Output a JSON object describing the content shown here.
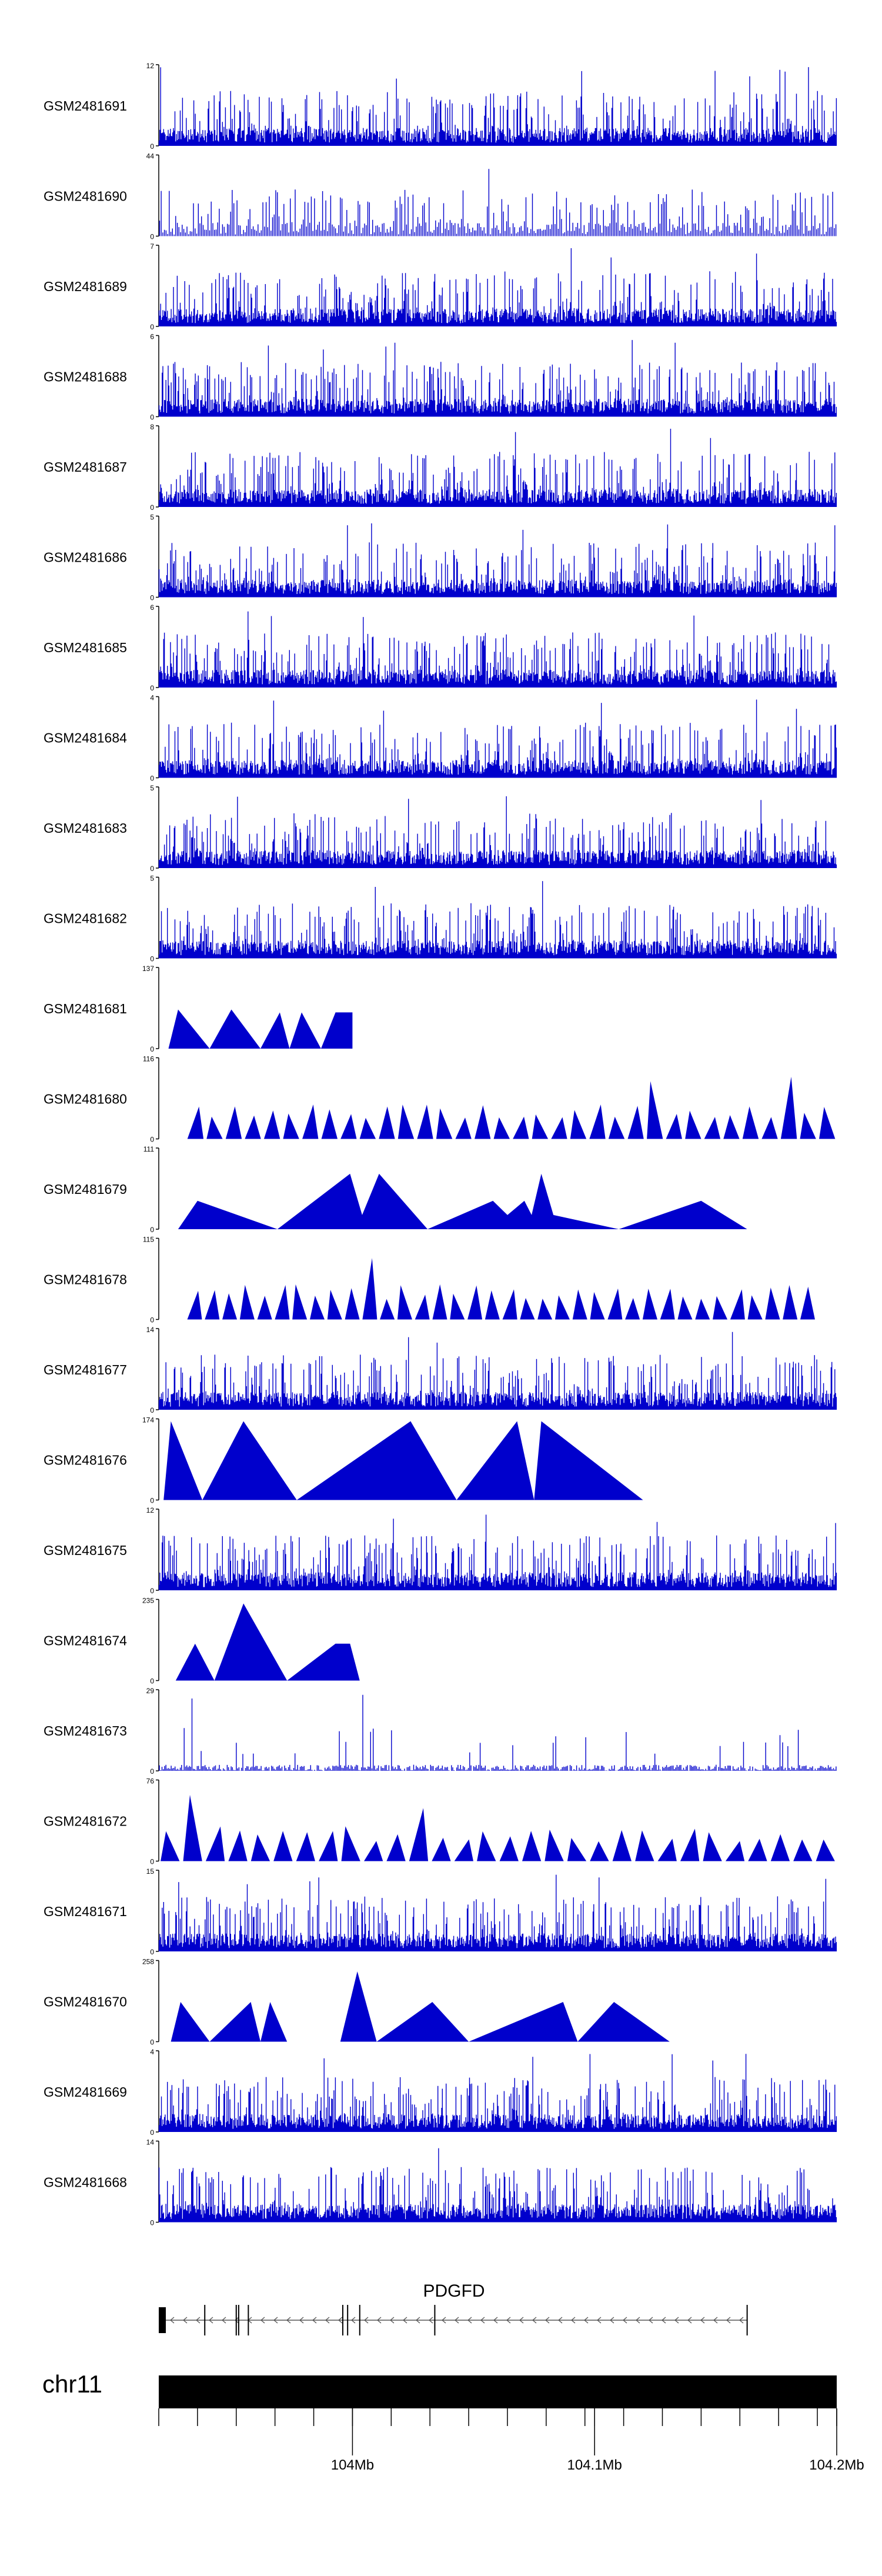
{
  "chart_data": {
    "type": "area",
    "title": "",
    "xlabel": "",
    "ylabel": "",
    "xlim": [
      103.92,
      104.2
    ],
    "series_color": "#0000cc",
    "tracks": [
      {
        "name": "GSM2481691",
        "ymax": 12,
        "ylim": [
          0,
          12
        ],
        "style": "dense",
        "seed": 11
      },
      {
        "name": "GSM2481690",
        "ymax": 44,
        "ylim": [
          0,
          44
        ],
        "style": "semi",
        "seed": 12
      },
      {
        "name": "GSM2481689",
        "ymax": 7,
        "ylim": [
          0,
          7
        ],
        "style": "dense",
        "seed": 13
      },
      {
        "name": "GSM2481688",
        "ymax": 6,
        "ylim": [
          0,
          6
        ],
        "style": "dense",
        "seed": 14
      },
      {
        "name": "GSM2481687",
        "ymax": 8,
        "ylim": [
          0,
          8
        ],
        "style": "dense",
        "seed": 15
      },
      {
        "name": "GSM2481686",
        "ymax": 5,
        "ylim": [
          0,
          5
        ],
        "style": "dense",
        "seed": 16
      },
      {
        "name": "GSM2481685",
        "ymax": 6,
        "ylim": [
          0,
          6
        ],
        "style": "dense",
        "seed": 17
      },
      {
        "name": "GSM2481684",
        "ymax": 4,
        "ylim": [
          0,
          4
        ],
        "style": "dense",
        "seed": 18
      },
      {
        "name": "GSM2481683",
        "ymax": 5,
        "ylim": [
          0,
          5
        ],
        "style": "dense",
        "seed": 19
      },
      {
        "name": "GSM2481682",
        "ymax": 5,
        "ylim": [
          0,
          5
        ],
        "style": "dense",
        "seed": 20
      },
      {
        "name": "GSM2481681",
        "ymax": 137,
        "ylim": [
          0,
          137
        ],
        "points": [
          [
            103.924,
            0
          ],
          [
            103.928,
            68
          ],
          [
            103.941,
            0
          ],
          [
            103.95,
            68
          ],
          [
            103.962,
            0
          ],
          [
            103.97,
            63
          ],
          [
            103.974,
            0
          ],
          [
            103.979,
            63
          ],
          [
            103.987,
            0
          ],
          [
            103.993,
            63
          ],
          [
            104.0,
            63
          ],
          [
            104.0,
            0
          ],
          [
            103.992,
            0
          ]
        ]
      },
      {
        "name": "GSM2481680",
        "ymax": 116,
        "ylim": [
          0,
          116
        ],
        "style": "triangles",
        "seed": 21,
        "tri_count": 34,
        "tri_start": 0.04,
        "tri_end": 1.0
      },
      {
        "name": "GSM2481679",
        "ymax": 111,
        "ylim": [
          0,
          111
        ],
        "points": [
          [
            103.928,
            0
          ],
          [
            103.936,
            40
          ],
          [
            103.969,
            0
          ],
          [
            103.999,
            78
          ],
          [
            104.004,
            20
          ],
          [
            104.011,
            78
          ],
          [
            104.031,
            0
          ],
          [
            104.058,
            40
          ],
          [
            104.064,
            20
          ],
          [
            104.071,
            40
          ],
          [
            104.074,
            20
          ],
          [
            104.078,
            78
          ],
          [
            104.083,
            20
          ],
          [
            104.11,
            0
          ],
          [
            104.144,
            40
          ],
          [
            104.163,
            0
          ]
        ]
      },
      {
        "name": "GSM2481678",
        "ymax": 115,
        "ylim": [
          0,
          115
        ],
        "style": "triangles",
        "seed": 22,
        "tri_count": 36,
        "tri_start": 0.04,
        "tri_end": 0.97
      },
      {
        "name": "GSM2481677",
        "ymax": 14,
        "ylim": [
          0,
          14
        ],
        "style": "dense",
        "seed": 23
      },
      {
        "name": "GSM2481676",
        "ymax": 174,
        "ylim": [
          0,
          174
        ],
        "points": [
          [
            103.922,
            0
          ],
          [
            103.925,
            174
          ],
          [
            103.938,
            0
          ],
          [
            103.955,
            174
          ],
          [
            103.977,
            0
          ],
          [
            104.024,
            174
          ],
          [
            104.043,
            0
          ],
          [
            104.068,
            174
          ],
          [
            104.075,
            0
          ],
          [
            104.078,
            174
          ],
          [
            104.12,
            0
          ]
        ]
      },
      {
        "name": "GSM2481675",
        "ymax": 12,
        "ylim": [
          0,
          12
        ],
        "style": "dense",
        "seed": 24
      },
      {
        "name": "GSM2481674",
        "ymax": 235,
        "ylim": [
          0,
          235
        ],
        "points": [
          [
            103.927,
            0
          ],
          [
            103.935,
            110
          ],
          [
            103.943,
            0
          ],
          [
            103.955,
            230
          ],
          [
            103.973,
            0
          ],
          [
            103.993,
            110
          ],
          [
            103.999,
            110
          ],
          [
            104.003,
            0
          ]
        ]
      },
      {
        "name": "GSM2481673",
        "ymax": 29,
        "ylim": [
          0,
          29
        ],
        "style": "sparse",
        "seed": 25
      },
      {
        "name": "GSM2481672",
        "ymax": 76,
        "ylim": [
          0,
          76
        ],
        "style": "triangles",
        "seed": 26,
        "tri_count": 30,
        "tri_start": 0.0,
        "tri_end": 1.0
      },
      {
        "name": "GSM2481671",
        "ymax": 15,
        "ylim": [
          0,
          15
        ],
        "style": "dense",
        "seed": 27
      },
      {
        "name": "GSM2481670",
        "ymax": 258,
        "ylim": [
          0,
          258
        ],
        "points": [
          [
            103.925,
            0
          ],
          [
            103.929,
            130
          ],
          [
            103.941,
            0
          ],
          [
            103.958,
            130
          ],
          [
            103.962,
            0
          ],
          [
            103.966,
            130
          ],
          [
            103.973,
            0
          ],
          [
            103.995,
            0
          ],
          [
            104.002,
            230
          ],
          [
            104.01,
            0
          ],
          [
            104.033,
            130
          ],
          [
            104.048,
            0
          ],
          [
            104.087,
            130
          ],
          [
            104.093,
            0
          ],
          [
            104.108,
            130
          ],
          [
            104.131,
            0
          ]
        ]
      },
      {
        "name": "GSM2481669",
        "ymax": 4,
        "ylim": [
          0,
          4
        ],
        "style": "dense",
        "seed": 28
      },
      {
        "name": "GSM2481668",
        "ymax": 14,
        "ylim": [
          0,
          14
        ],
        "style": "dense",
        "seed": 29
      }
    ],
    "gene": {
      "name": "PDGFD",
      "start": 103.92,
      "end": 104.163,
      "strand": "-",
      "exons": [
        103.92,
        103.939,
        103.952,
        103.953,
        103.957,
        103.996,
        103.998,
        104.003,
        104.034,
        104.163
      ]
    },
    "chromosome": {
      "name": "chr11",
      "tick_values": [
        103.92,
        103.936,
        103.952,
        103.968,
        103.984,
        104.0,
        104.016,
        104.032,
        104.048,
        104.064,
        104.08,
        104.096,
        104.1,
        104.112,
        104.128,
        104.144,
        104.16,
        104.176,
        104.192,
        104.2
      ],
      "labeled_ticks": [
        {
          "value": 104.0,
          "label": "104Mb"
        },
        {
          "value": 104.1,
          "label": "104.1Mb"
        },
        {
          "value": 104.2,
          "label": "104.2Mb"
        }
      ]
    }
  }
}
